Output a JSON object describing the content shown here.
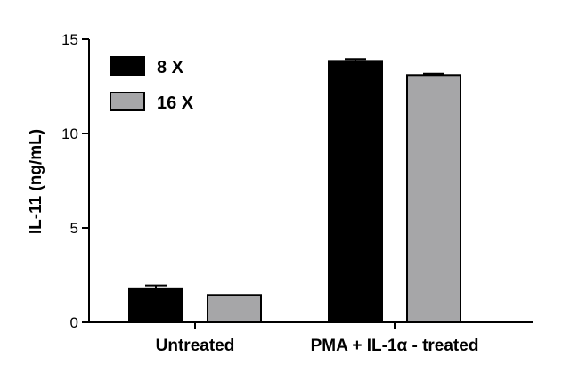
{
  "chart_data": {
    "type": "bar",
    "categories": [
      "Untreated",
      "PMA + IL-1α - treated"
    ],
    "series": [
      {
        "name": "8 X",
        "values": [
          1.8,
          13.85
        ],
        "errors": [
          0.15,
          0.1
        ],
        "color": "#000000"
      },
      {
        "name": "16 X",
        "values": [
          1.45,
          13.1
        ],
        "errors": [
          0.0,
          0.07
        ],
        "color": "#a6a6a8"
      }
    ],
    "ylabel": "IL-11 (ng/mL)",
    "xlabel": "",
    "ylim": [
      0,
      15
    ],
    "yticks": [
      0,
      5,
      10,
      15
    ],
    "grid": false,
    "legend_position": "top-left"
  }
}
